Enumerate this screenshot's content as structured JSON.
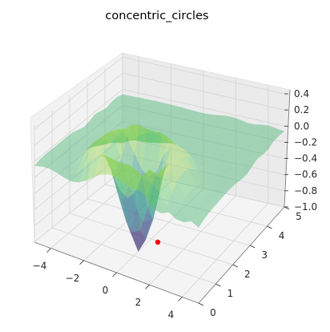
{
  "chart_data": {
    "type": "surface3d",
    "title": "concentric_circles",
    "xlabel": "",
    "ylabel": "",
    "zlabel": "",
    "x_ticks": [
      "−4",
      "−2",
      "0",
      "2",
      "4"
    ],
    "y_ticks": [
      "0",
      "1",
      "2",
      "3",
      "4",
      "5"
    ],
    "z_ticks": [
      "−1.0",
      "−0.8",
      "−0.6",
      "−0.4",
      "−0.2",
      "0.0",
      "0.2",
      "0.4"
    ],
    "xlim": [
      -5,
      5
    ],
    "ylim": [
      0,
      5
    ],
    "zlim": [
      -1.0,
      0.45
    ],
    "grid": true,
    "colormap": "viridis",
    "surface_alpha": 0.45,
    "surface_extent": {
      "x": [
        -5,
        5
      ],
      "y": [
        0,
        5
      ]
    },
    "surface_shape": "radial well with concentric ripples",
    "minimum_marker": {
      "x": 0,
      "y": 0,
      "z": -1.0,
      "color": "#ff0000"
    }
  }
}
